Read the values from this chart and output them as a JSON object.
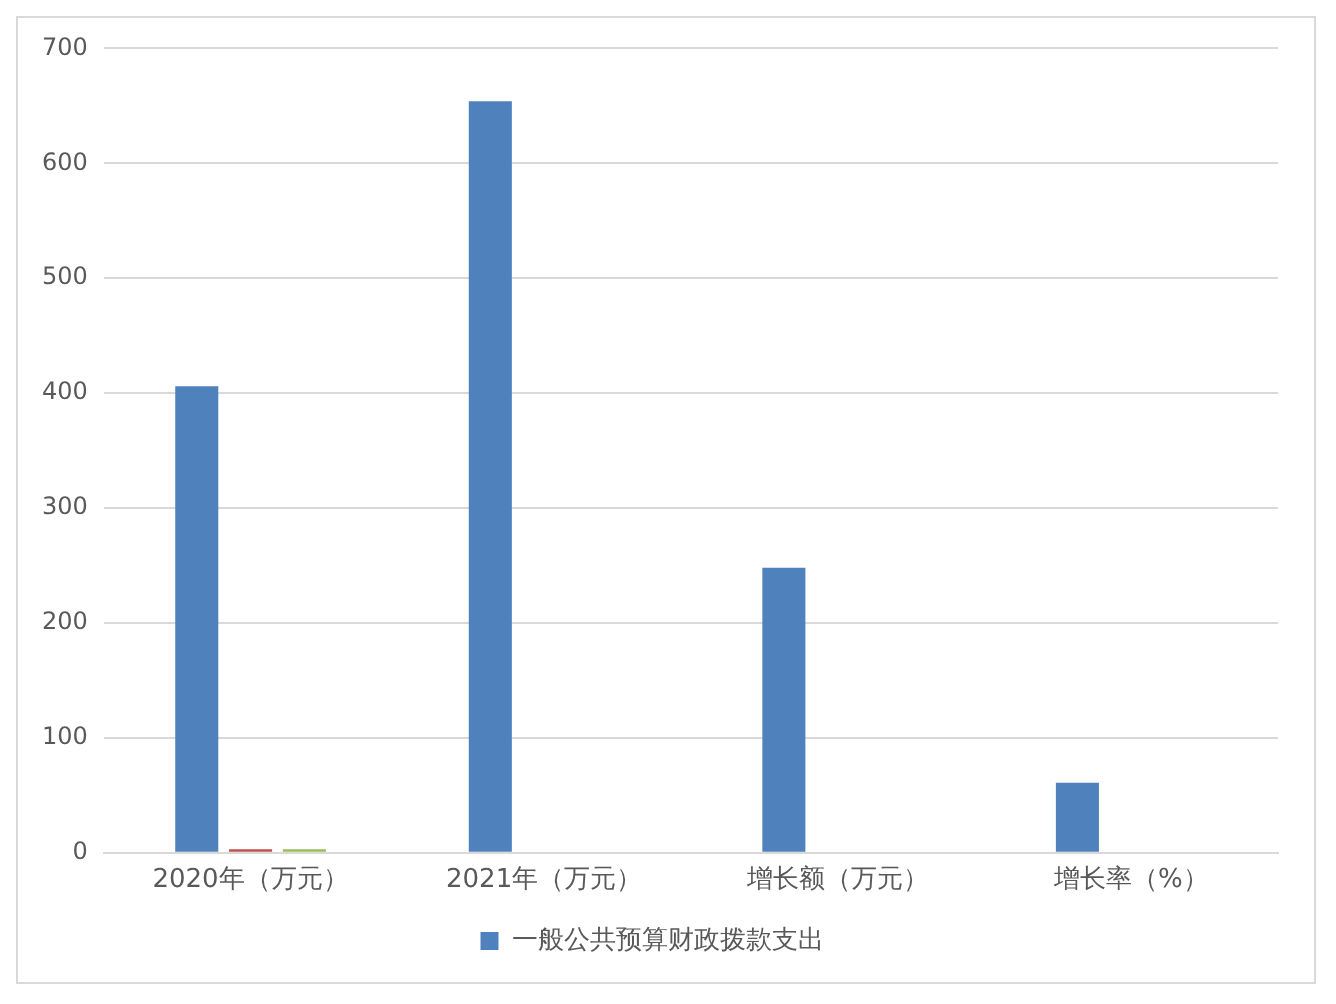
{
  "chart_data": {
    "type": "bar",
    "categories": [
      "2020年（万元）",
      "2021年（万元）",
      "增长额（万元）",
      "增长率（%）"
    ],
    "series": [
      {
        "name": "一般公共预算财政拨款支出",
        "color": "#4f81bd",
        "values": [
          406,
          654,
          248,
          61
        ]
      },
      {
        "color": "#c0504d",
        "values": [
          3,
          null,
          null,
          null
        ]
      },
      {
        "color": "#9bbb59",
        "values": [
          3,
          null,
          null,
          null
        ]
      }
    ],
    "ylim": [
      0,
      700
    ],
    "yticks": [
      0,
      100,
      200,
      300,
      400,
      500,
      600,
      700
    ],
    "grid": "y",
    "legend": "bottom"
  }
}
